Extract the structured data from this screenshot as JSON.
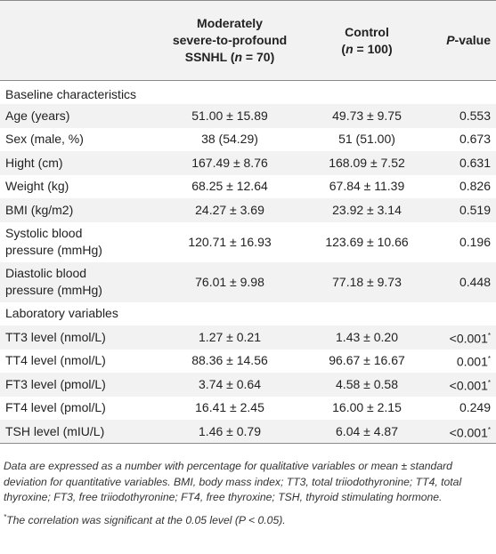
{
  "table": {
    "headers": {
      "col2": {
        "line1": "Moderately",
        "line2": "severe-to-profound",
        "line3_pre": "SSNHL (",
        "n": "n",
        "line3_post": " = 70)"
      },
      "col3": {
        "line1": "Control",
        "line2_pre": "(",
        "n": "n",
        "line2_post": " = 100)"
      },
      "col4": {
        "p": "P",
        "rest": "-value"
      }
    },
    "sections": [
      {
        "title": "Baseline characteristics",
        "rows": [
          {
            "label": "Age (years)",
            "ssnhl": "51.00 ± 15.89",
            "control": "49.73 ± 9.75",
            "p": "0.553"
          },
          {
            "label": "Sex (male, %)",
            "ssnhl": "38 (54.29)",
            "control": "51 (51.00)",
            "p": "0.673"
          },
          {
            "label": "Hight (cm)",
            "ssnhl": "167.49 ± 8.76",
            "control": "168.09 ± 7.52",
            "p": "0.631"
          },
          {
            "label": "Weight (kg)",
            "ssnhl": "68.25 ± 12.64",
            "control": "67.84 ± 11.39",
            "p": "0.826"
          },
          {
            "label": "BMI (kg/m2)",
            "ssnhl": "24.27 ± 3.69",
            "control": "23.92 ± 3.14",
            "p": "0.519"
          },
          {
            "label_line1": "Systolic blood",
            "label_line2": "pressure (mmHg)",
            "ssnhl": "120.71 ± 16.93",
            "control": "123.69 ± 10.66",
            "p": "0.196"
          },
          {
            "label_line1": "Diastolic blood",
            "label_line2": "pressure (mmHg)",
            "ssnhl": "76.01 ± 9.98",
            "control": "77.18 ± 9.73",
            "p": "0.448"
          }
        ]
      },
      {
        "title": "Laboratory variables",
        "rows": [
          {
            "label": "TT3 level (nmol/L)",
            "ssnhl": "1.27 ± 0.21",
            "control": "1.43 ± 0.20",
            "p": "<0.001",
            "sig": "*"
          },
          {
            "label": "TT4 level (nmol/L)",
            "ssnhl": "88.36 ± 14.56",
            "control": "96.67 ± 16.67",
            "p": "0.001",
            "sig": "*"
          },
          {
            "label": "FT3 level (pmol/L)",
            "ssnhl": "3.74 ± 0.64",
            "control": "4.58 ± 0.58",
            "p": "<0.001",
            "sig": "*"
          },
          {
            "label": "FT4 level (pmol/L)",
            "ssnhl": "16.41 ± 2.45",
            "control": "16.00 ± 2.15",
            "p": "0.249"
          },
          {
            "label": "TSH level (mIU/L)",
            "ssnhl": "1.46 ± 0.79",
            "control": "6.04 ± 4.87",
            "p": "<0.001",
            "sig": "*"
          }
        ]
      }
    ]
  },
  "notes": {
    "main": "Data are expressed as a number with percentage for qualitative variables or mean ± standard deviation for quantitative variables. BMI, body mass index; TT3, total triiodothyronine; TT4, total thyroxine; FT3, free triiodothyronine; FT4, free thyroxine; TSH, thyroid stimulating hormone.",
    "footnote_mark": "*",
    "footnote": "The correlation was significant at the 0.05 level (P < 0.05)."
  }
}
